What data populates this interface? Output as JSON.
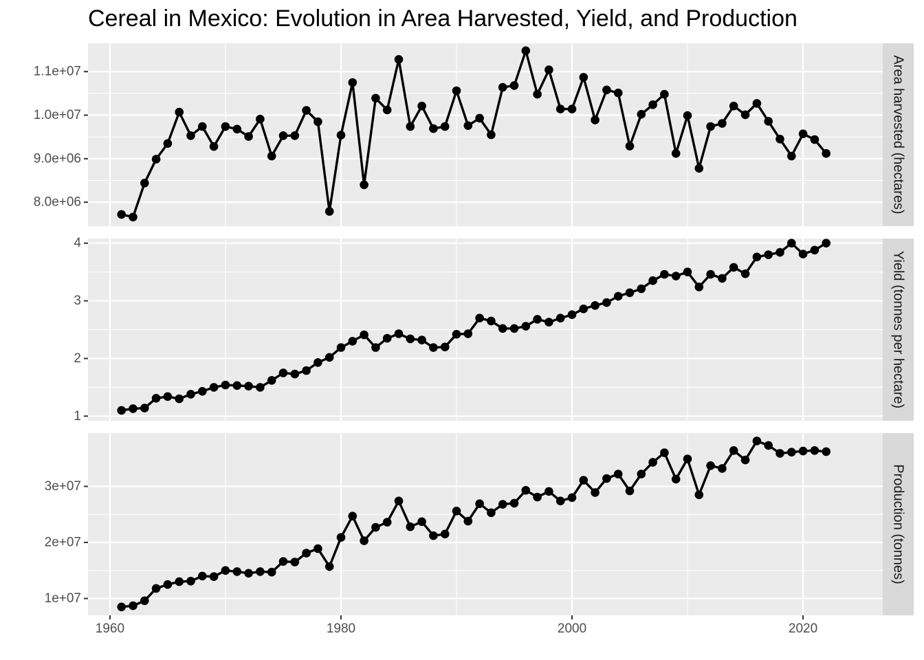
{
  "chart_data": {
    "type": "line",
    "title": "Cereal in Mexico: Evolution in Area Harvested, Yield, and Production",
    "x_ticks": [
      1960,
      1980,
      2000,
      2020
    ],
    "xlim": [
      1958.1,
      2026.9
    ],
    "grid": true,
    "panels": [
      {
        "strip": "Area harvested (hectares)",
        "ylim": [
          7450000,
          11650000
        ],
        "y_ticks": [
          8000000,
          9000000,
          10000000,
          11000000
        ],
        "y_tick_labels": [
          "8.0e+06",
          "9.0e+06",
          "1.0e+07",
          "1.1e+07"
        ],
        "x": [
          1961,
          1962,
          1963,
          1964,
          1965,
          1966,
          1967,
          1968,
          1969,
          1970,
          1971,
          1972,
          1973,
          1974,
          1975,
          1976,
          1977,
          1978,
          1979,
          1980,
          1981,
          1982,
          1983,
          1984,
          1985,
          1986,
          1987,
          1988,
          1989,
          1990,
          1991,
          1992,
          1993,
          1994,
          1995,
          1996,
          1997,
          1998,
          1999,
          2000,
          2001,
          2002,
          2003,
          2004,
          2005,
          2006,
          2007,
          2008,
          2009,
          2010,
          2011,
          2012,
          2013,
          2014,
          2015,
          2016,
          2017,
          2018,
          2019,
          2020,
          2021,
          2022
        ],
        "values": [
          7720000,
          7660000,
          8440000,
          8990000,
          9350000,
          10070000,
          9530000,
          9740000,
          9280000,
          9740000,
          9680000,
          9510000,
          9910000,
          9060000,
          9530000,
          9530000,
          10110000,
          9850000,
          7790000,
          9540000,
          10750000,
          8400000,
          10390000,
          10120000,
          11280000,
          9740000,
          10210000,
          9690000,
          9740000,
          10560000,
          9760000,
          9930000,
          9550000,
          10640000,
          10680000,
          11480000,
          10480000,
          11040000,
          10140000,
          10140000,
          10870000,
          9890000,
          10580000,
          10510000,
          9290000,
          10020000,
          10240000,
          10480000,
          9120000,
          9990000,
          8780000,
          9740000,
          9810000,
          10210000,
          10010000,
          10270000,
          9860000,
          9450000,
          9060000,
          9570000,
          9440000,
          9120000
        ]
      },
      {
        "strip": "Yield (tonnes per hectare)",
        "ylim": [
          0.92,
          4.08
        ],
        "y_ticks": [
          1,
          2,
          3,
          4
        ],
        "y_tick_labels": [
          "1",
          "2",
          "3",
          "4"
        ],
        "x": [
          1961,
          1962,
          1963,
          1964,
          1965,
          1966,
          1967,
          1968,
          1969,
          1970,
          1971,
          1972,
          1973,
          1974,
          1975,
          1976,
          1977,
          1978,
          1979,
          1980,
          1981,
          1982,
          1983,
          1984,
          1985,
          1986,
          1987,
          1988,
          1989,
          1990,
          1991,
          1992,
          1993,
          1994,
          1995,
          1996,
          1997,
          1998,
          1999,
          2000,
          2001,
          2002,
          2003,
          2004,
          2005,
          2006,
          2007,
          2008,
          2009,
          2010,
          2011,
          2012,
          2013,
          2014,
          2015,
          2016,
          2017,
          2018,
          2019,
          2020,
          2021,
          2022
        ],
        "values": [
          1.1,
          1.13,
          1.14,
          1.31,
          1.34,
          1.3,
          1.38,
          1.43,
          1.5,
          1.54,
          1.53,
          1.52,
          1.5,
          1.62,
          1.75,
          1.73,
          1.79,
          1.93,
          2.02,
          2.19,
          2.3,
          2.41,
          2.19,
          2.35,
          2.43,
          2.34,
          2.32,
          2.19,
          2.2,
          2.42,
          2.43,
          2.7,
          2.65,
          2.52,
          2.52,
          2.56,
          2.68,
          2.63,
          2.7,
          2.76,
          2.86,
          2.92,
          2.97,
          3.08,
          3.14,
          3.21,
          3.35,
          3.46,
          3.43,
          3.5,
          3.24,
          3.46,
          3.39,
          3.58,
          3.47,
          3.76,
          3.8,
          3.84,
          4.0,
          3.81,
          3.88,
          4.0
        ]
      },
      {
        "strip": "Production (tonnes)",
        "ylim": [
          7000000,
          39500000
        ],
        "y_ticks": [
          10000000,
          20000000,
          30000000
        ],
        "y_tick_labels": [
          "1e+07",
          "2e+07",
          "3e+07"
        ],
        "x": [
          1961,
          1962,
          1963,
          1964,
          1965,
          1966,
          1967,
          1968,
          1969,
          1970,
          1971,
          1972,
          1973,
          1974,
          1975,
          1976,
          1977,
          1978,
          1979,
          1980,
          1981,
          1982,
          1983,
          1984,
          1985,
          1986,
          1987,
          1988,
          1989,
          1990,
          1991,
          1992,
          1993,
          1994,
          1995,
          1996,
          1997,
          1998,
          1999,
          2000,
          2001,
          2002,
          2003,
          2004,
          2005,
          2006,
          2007,
          2008,
          2009,
          2010,
          2011,
          2012,
          2013,
          2014,
          2015,
          2016,
          2017,
          2018,
          2019,
          2020,
          2021,
          2022
        ],
        "values": [
          8500000,
          8700000,
          9600000,
          11800000,
          12500000,
          13000000,
          13100000,
          14000000,
          13900000,
          15000000,
          14800000,
          14500000,
          14800000,
          14700000,
          16600000,
          16500000,
          18100000,
          18900000,
          15700000,
          20900000,
          24700000,
          20300000,
          22700000,
          23600000,
          27400000,
          22800000,
          23700000,
          21200000,
          21500000,
          25600000,
          23800000,
          26900000,
          25300000,
          26800000,
          27000000,
          29300000,
          28100000,
          29100000,
          27400000,
          28000000,
          31100000,
          28900000,
          31400000,
          32200000,
          29200000,
          32200000,
          34300000,
          36000000,
          31300000,
          34900000,
          28500000,
          33700000,
          33200000,
          36400000,
          34700000,
          38100000,
          37300000,
          35900000,
          36100000,
          36300000,
          36400000,
          36200000
        ]
      }
    ]
  }
}
